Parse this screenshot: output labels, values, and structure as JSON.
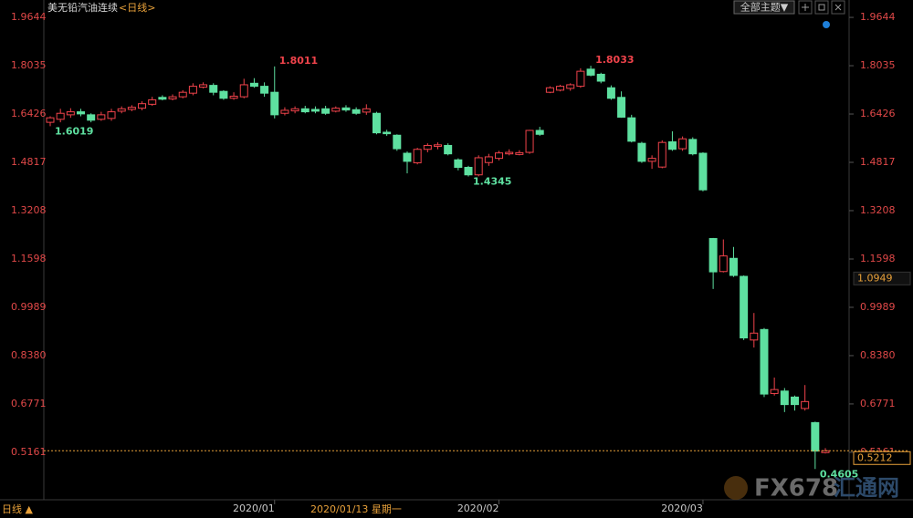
{
  "chart_data": {
    "type": "candlestick",
    "title": "美无铅汽油连续",
    "period": "<日线>",
    "period_button": "日线 ▲",
    "theme_button": "全部主题▼",
    "crosshair_label": "2020/01/13 星期一",
    "cursor_price": 1.0949,
    "watermark": "FX678",
    "watermark_cn": "汇通网",
    "up_color": "#f0434b",
    "down_color": "#5ee0a0",
    "categories": [
      null,
      null,
      null,
      null,
      null,
      null,
      null,
      null,
      null,
      null,
      null,
      null,
      null,
      null,
      null,
      null,
      null,
      null,
      null,
      null,
      null,
      null,
      "2020/01",
      null,
      null,
      null,
      null,
      null,
      null,
      null,
      null,
      null,
      null,
      null,
      null,
      null,
      null,
      null,
      null,
      null,
      null,
      null,
      null,
      null,
      "2020/02",
      null,
      null,
      null,
      null,
      null,
      null,
      null,
      null,
      null,
      null,
      null,
      null,
      null,
      null,
      null,
      null,
      null,
      null,
      null,
      "2020/03",
      null,
      null,
      null,
      null,
      null,
      null,
      null,
      null,
      null,
      null,
      null,
      null
    ],
    "open": [
      1.615,
      1.625,
      1.64,
      1.65,
      1.64,
      1.625,
      1.628,
      1.652,
      1.658,
      1.662,
      1.675,
      1.698,
      1.693,
      1.7,
      1.712,
      1.732,
      1.738,
      1.718,
      1.695,
      1.7,
      1.745,
      1.735,
      1.715,
      1.645,
      1.653,
      1.66,
      1.658,
      1.66,
      1.652,
      1.663,
      1.657,
      1.649,
      1.645,
      1.582,
      1.572,
      1.512,
      1.48,
      1.525,
      1.535,
      1.538,
      1.49,
      1.465,
      1.44,
      1.481,
      1.495,
      1.51,
      1.508,
      1.515,
      1.588,
      1.715,
      1.722,
      1.728,
      1.735,
      1.792,
      1.775,
      1.73,
      1.698,
      1.63,
      1.545,
      1.485,
      1.466,
      1.55,
      1.527,
      1.558,
      1.512,
      1.228,
      1.118,
      1.162,
      1.102,
      0.89,
      0.925,
      0.712,
      0.72,
      0.7,
      0.662,
      0.615,
      0.515
    ],
    "high": [
      1.635,
      1.66,
      1.662,
      1.66,
      1.645,
      1.65,
      1.66,
      1.668,
      1.672,
      1.685,
      1.7,
      1.705,
      1.708,
      1.722,
      1.745,
      1.748,
      1.745,
      1.722,
      1.715,
      1.76,
      1.762,
      1.748,
      1.8011,
      1.665,
      1.668,
      1.67,
      1.668,
      1.67,
      1.668,
      1.672,
      1.665,
      1.675,
      1.65,
      1.59,
      1.575,
      1.518,
      1.53,
      1.545,
      1.548,
      1.545,
      1.495,
      1.47,
      1.505,
      1.51,
      1.52,
      1.525,
      1.522,
      1.59,
      1.6,
      1.735,
      1.74,
      1.745,
      1.795,
      1.8033,
      1.78,
      1.738,
      1.718,
      1.64,
      1.55,
      1.505,
      1.555,
      1.585,
      1.568,
      1.565,
      1.515,
      1.23,
      1.225,
      1.2,
      1.105,
      0.98,
      0.93,
      0.765,
      0.73,
      0.705,
      0.74,
      0.618,
      0.53
    ],
    "low": [
      1.6019,
      1.615,
      1.63,
      1.635,
      1.615,
      1.62,
      1.62,
      1.645,
      1.652,
      1.655,
      1.67,
      1.688,
      1.688,
      1.695,
      1.705,
      1.728,
      1.705,
      1.69,
      1.69,
      1.695,
      1.73,
      1.7,
      1.628,
      1.638,
      1.645,
      1.645,
      1.645,
      1.64,
      1.648,
      1.65,
      1.64,
      1.64,
      1.575,
      1.57,
      1.52,
      1.445,
      1.475,
      1.515,
      1.525,
      1.505,
      1.455,
      1.4345,
      1.435,
      1.47,
      1.488,
      1.505,
      1.505,
      1.51,
      1.57,
      1.712,
      1.718,
      1.72,
      1.73,
      1.768,
      1.745,
      1.69,
      1.63,
      1.548,
      1.48,
      1.46,
      1.462,
      1.52,
      1.52,
      1.505,
      1.385,
      1.06,
      1.115,
      1.1,
      0.89,
      0.865,
      0.7,
      0.705,
      0.65,
      0.655,
      0.655,
      0.4605,
      0.512
    ],
    "close": [
      1.63,
      1.645,
      1.65,
      1.643,
      1.622,
      1.64,
      1.65,
      1.66,
      1.665,
      1.677,
      1.69,
      1.692,
      1.7,
      1.715,
      1.735,
      1.74,
      1.715,
      1.695,
      1.702,
      1.74,
      1.735,
      1.712,
      1.64,
      1.655,
      1.66,
      1.65,
      1.652,
      1.645,
      1.662,
      1.656,
      1.645,
      1.66,
      1.58,
      1.577,
      1.527,
      1.485,
      1.525,
      1.538,
      1.54,
      1.51,
      1.465,
      1.44,
      1.497,
      1.5,
      1.513,
      1.515,
      1.514,
      1.588,
      1.575,
      1.73,
      1.735,
      1.74,
      1.785,
      1.772,
      1.752,
      1.695,
      1.632,
      1.552,
      1.485,
      1.495,
      1.548,
      1.525,
      1.56,
      1.51,
      1.39,
      1.117,
      1.17,
      1.105,
      0.897,
      0.913,
      0.71,
      0.725,
      0.675,
      0.675,
      0.685,
      0.52,
      0.5212
    ],
    "ylim": [
      0.358,
      1.998
    ],
    "yticks": [
      1.9644,
      1.8035,
      1.6426,
      1.4817,
      1.3208,
      1.1598,
      0.9989,
      {
        "value": 0.838,
        "label": "0.8380"
      },
      0.6771,
      0.5161
    ]
  }
}
